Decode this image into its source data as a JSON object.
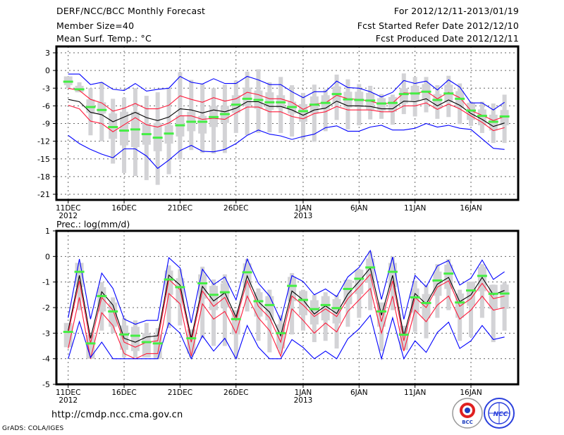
{
  "header": {
    "title": "DERF/NCC/BCC Monthly Forecast",
    "member_size": "Member Size=40",
    "variable": "Mean Surf. Temp.: °C",
    "period": "For 2012/12/11-2013/01/19",
    "start_date": "Fcst Started Refer Date 2012/12/10",
    "produced_date": "Fcst Produced Date 2012/12/11"
  },
  "footer": {
    "url": "http://cmdp.ncc.cma.gov.cn",
    "credit": "GrADS: COLA/IGES",
    "logo_bcc": "BCC",
    "logo_ncc": "NCC"
  },
  "colors": {
    "gray": "#d3d3d6",
    "green": "#44ee44",
    "black": "#000000",
    "red": "#ff1a3a",
    "blue": "#0000ff"
  },
  "chart_data": [
    {
      "type": "line",
      "title": "Mean Surf. Temp.: °C",
      "ylabel": "",
      "ylim": [
        -21,
        3
      ],
      "yticks": [
        "3",
        "0",
        "-3",
        "-6",
        "-9",
        "-12",
        "-15",
        "-18",
        "-21"
      ],
      "ytick_values": [
        3,
        0,
        -3,
        -6,
        -9,
        -12,
        -15,
        -18,
        -21
      ],
      "xticks": [
        {
          "day": 0,
          "label": "11DEC",
          "year": "2012"
        },
        {
          "day": 5,
          "label": "16DEC"
        },
        {
          "day": 10,
          "label": "21DEC"
        },
        {
          "day": 15,
          "label": "26DEC"
        },
        {
          "day": 21,
          "label": "1JAN",
          "year": "2013"
        },
        {
          "day": 26,
          "label": "6JAN"
        },
        {
          "day": 31,
          "label": "11JAN"
        },
        {
          "day": 36,
          "label": "16JAN"
        }
      ],
      "days": 40,
      "grid": true,
      "whisker_hi": [
        -1,
        -2,
        -3,
        -2,
        -4.8,
        -4.6,
        -3,
        -4.3,
        -3.7,
        -3,
        -0.3,
        -1.6,
        -2.3,
        -3,
        -2.4,
        -1.7,
        -0.2,
        0.2,
        -2,
        -1.1,
        -2.5,
        -3.8,
        -2.4,
        -3.2,
        -0.7,
        -1.5,
        -2.3,
        -2.6,
        -4,
        -4.1,
        -0.5,
        -1.1,
        -1.1,
        -2.5,
        -0.9,
        -2.2,
        -5.3,
        -5.3,
        -5.6,
        -4.1
      ],
      "whisker_lo": [
        -3,
        -3.7,
        -11,
        -12,
        -15.8,
        -17.4,
        -17.9,
        -18.6,
        -19.4,
        -17.6,
        -15.1,
        -13.5,
        -14,
        -14.1,
        -14,
        -10.6,
        -11,
        -10.6,
        -10.5,
        -10.6,
        -11.2,
        -11.7,
        -12.1,
        -10.3,
        -8.4,
        -10,
        -9.3,
        -8.3,
        -8.2,
        -9.2,
        -7.4,
        -7.8,
        -7.1,
        -8.2,
        -7.9,
        -9.1,
        -9.4,
        -10.6,
        -12.3,
        -12.3
      ],
      "box_hi": [
        -1.0,
        -2.6,
        -4.9,
        -5.4,
        -7.3,
        -7.0,
        -7.0,
        -9.0,
        -8.9,
        -9.3,
        -7.6,
        -7.0,
        -7.7,
        -6.0,
        -6.0,
        -4.2,
        -2.9,
        -3.4,
        -3.7,
        -4.2,
        -5.3,
        -5.7,
        -4.4,
        -4.2,
        -2.7,
        -3.6,
        -3.6,
        -3.8,
        -4.7,
        -4.5,
        -3.0,
        -2.6,
        -2.3,
        -4.0,
        -2.4,
        -3.5,
        -5.5,
        -6.6,
        -7.5,
        -6.7
      ],
      "box_lo": [
        -2.5,
        -3.7,
        -7.2,
        -7.3,
        -11.6,
        -12.7,
        -13.0,
        -12.6,
        -13.7,
        -12.4,
        -11.2,
        -10.3,
        -10.7,
        -9.6,
        -8.9,
        -7.2,
        -6.0,
        -6.5,
        -6.7,
        -6.4,
        -7.3,
        -8.7,
        -7.3,
        -6.6,
        -5.5,
        -6.3,
        -6.2,
        -6.7,
        -6.8,
        -7.0,
        -5.6,
        -5.2,
        -5.0,
        -6.5,
        -5.4,
        -6.3,
        -8.4,
        -9.3,
        -10.2,
        -9.3
      ],
      "green": [
        -1.9,
        -3.2,
        -6.2,
        -6.7,
        -9.6,
        -10.2,
        -10.0,
        -10.8,
        -11.4,
        -10.7,
        -9.3,
        -8.7,
        -8.7,
        -7.9,
        -7.4,
        -5.8,
        -4.8,
        -5.0,
        -5.4,
        -5.4,
        -6.2,
        -6.9,
        -5.8,
        -5.5,
        -4.0,
        -4.9,
        -5.0,
        -5.1,
        -5.6,
        -5.5,
        -4.0,
        -3.9,
        -3.6,
        -5.0,
        -3.9,
        -4.8,
        -6.8,
        -7.7,
        -8.7,
        -7.8
      ],
      "series": [
        {
          "name": "blue_upper",
          "color": "#0000ff",
          "values": [
            -0.6,
            -0.6,
            -2.4,
            -2.0,
            -3.2,
            -3.4,
            -2.2,
            -3.5,
            -3.2,
            -3.0,
            -1.0,
            -2.0,
            -2.3,
            -1.4,
            -2.2,
            -2.2,
            -1.0,
            -1.6,
            -2.4,
            -2.4,
            -3.6,
            -4.6,
            -3.6,
            -3.6,
            -1.8,
            -2.9,
            -3.0,
            -3.6,
            -4.5,
            -3.7,
            -1.7,
            -2.2,
            -1.8,
            -3.3,
            -1.6,
            -2.8,
            -5.5,
            -5.5,
            -6.7,
            -5.4
          ]
        },
        {
          "name": "red_upper",
          "color": "#ff1a3a",
          "values": [
            -3.0,
            -3.4,
            -4.9,
            -5.5,
            -6.9,
            -6.4,
            -5.6,
            -6.5,
            -6.5,
            -5.9,
            -4.3,
            -4.9,
            -5.4,
            -4.6,
            -5.2,
            -4.8,
            -3.7,
            -4.1,
            -4.8,
            -4.8,
            -5.4,
            -6.6,
            -5.7,
            -5.5,
            -4.2,
            -4.8,
            -4.9,
            -5.2,
            -5.7,
            -5.5,
            -3.8,
            -3.9,
            -3.5,
            -4.8,
            -3.7,
            -4.6,
            -6.8,
            -7.6,
            -8.5,
            -7.8
          ]
        },
        {
          "name": "mean",
          "color": "#000000",
          "values": [
            -4.9,
            -5.3,
            -7.1,
            -7.5,
            -8.7,
            -7.9,
            -7.1,
            -8.0,
            -8.5,
            -7.9,
            -6.5,
            -6.7,
            -7.2,
            -6.7,
            -7.0,
            -6.4,
            -5.3,
            -5.3,
            -6.1,
            -6.1,
            -6.7,
            -7.6,
            -6.7,
            -6.4,
            -5.2,
            -6.0,
            -6.0,
            -6.1,
            -6.5,
            -6.5,
            -5.2,
            -5.3,
            -4.8,
            -6.0,
            -5.0,
            -5.9,
            -7.3,
            -8.3,
            -9.5,
            -8.9
          ]
        },
        {
          "name": "red_lower",
          "color": "#ff1a3a",
          "values": [
            -5.9,
            -6.5,
            -8.6,
            -9.0,
            -10.4,
            -9.2,
            -8.0,
            -9.2,
            -9.6,
            -8.9,
            -7.7,
            -7.7,
            -8.3,
            -8.1,
            -8.3,
            -7.2,
            -6.2,
            -6.2,
            -7.0,
            -7.0,
            -7.8,
            -8.2,
            -7.3,
            -7.0,
            -6.1,
            -6.7,
            -6.7,
            -6.7,
            -7.0,
            -7.0,
            -6.0,
            -6.0,
            -5.5,
            -6.6,
            -5.7,
            -6.5,
            -7.7,
            -8.8,
            -10.2,
            -9.7
          ]
        },
        {
          "name": "blue_lower",
          "color": "#0000ff",
          "values": [
            -11.0,
            -12.4,
            -13.4,
            -14.2,
            -14.8,
            -13.3,
            -13.3,
            -14.5,
            -16.6,
            -15.2,
            -13.6,
            -12.7,
            -13.7,
            -13.8,
            -13.4,
            -12.4,
            -11.0,
            -10.1,
            -10.8,
            -11.1,
            -11.7,
            -11.2,
            -10.8,
            -9.7,
            -9.4,
            -10.3,
            -10.3,
            -9.6,
            -9.3,
            -10.1,
            -10.1,
            -9.8,
            -9.0,
            -9.6,
            -9.3,
            -9.8,
            -10.0,
            -11.6,
            -13.2,
            -13.4
          ]
        }
      ]
    },
    {
      "type": "line",
      "title": "Prec.: log(mm/d)",
      "ylim": [
        -5,
        1
      ],
      "yticks": [
        "1",
        "0",
        "-1",
        "-2",
        "-3",
        "-4",
        "-5"
      ],
      "ytick_values": [
        1,
        0,
        -1,
        -2,
        -3,
        -4,
        -5
      ],
      "xticks": [
        {
          "day": 0,
          "label": "11DEC",
          "year": "2012"
        },
        {
          "day": 5,
          "label": "16DEC"
        },
        {
          "day": 10,
          "label": "21DEC"
        },
        {
          "day": 15,
          "label": "26DEC"
        },
        {
          "day": 21,
          "label": "1JAN",
          "year": "2013"
        },
        {
          "day": 26,
          "label": "6JAN"
        },
        {
          "day": 31,
          "label": "11JAN"
        },
        {
          "day": 36,
          "label": "16JAN"
        }
      ],
      "days": 40,
      "grid": true,
      "whisker_hi": [
        -2.75,
        -0.25,
        -3.1,
        -1.0,
        -1.6,
        -2.4,
        -2.5,
        -2.6,
        -2.8,
        -0.35,
        -0.5,
        -3.0,
        -0.4,
        -0.9,
        -0.7,
        -2.3,
        -0.1,
        -1.25,
        -1.3,
        -2.3,
        -0.65,
        -1.3,
        -1.5,
        -1.4,
        -1.5,
        -0.9,
        -0.5,
        0.2,
        -1.9,
        0.0,
        -2.8,
        -0.95,
        -1.1,
        -0.3,
        -0.1,
        -1.3,
        -1.05,
        -0.3,
        -1.1,
        -1.0
      ],
      "whisker_lo": [
        -3.3,
        -2.1,
        -4.0,
        -2.9,
        -3.0,
        -3.95,
        -3.95,
        -3.95,
        -3.95,
        -2.8,
        -2.7,
        -3.95,
        -3.2,
        -3.5,
        -3.5,
        -4.0,
        -2.15,
        -3.3,
        -3.75,
        -3.8,
        -3.05,
        -2.9,
        -3.35,
        -3.3,
        -3.6,
        -2.75,
        -2.4,
        -2.1,
        -3.7,
        -2.1,
        -3.45,
        -2.95,
        -3.2,
        -2.4,
        -2.1,
        -3.3,
        -3.15,
        -2.4,
        -3.35,
        -2.9
      ],
      "box_hi": [
        -2.6,
        -0.25,
        -3.05,
        -1.2,
        -1.8,
        -2.7,
        -2.75,
        -3.0,
        -3.05,
        -0.55,
        -0.85,
        -2.85,
        -0.7,
        -1.15,
        -1.05,
        -2.1,
        -0.27,
        -1.4,
        -1.55,
        -2.65,
        -0.8,
        -1.35,
        -1.71,
        -1.55,
        -1.67,
        -0.92,
        -0.52,
        -0.08,
        -1.8,
        -0.25,
        -2.71,
        -1.25,
        -1.47,
        -0.59,
        -0.32,
        -1.45,
        -0.98,
        -0.41,
        -1.11,
        -1.1
      ],
      "box_lo": [
        -3.55,
        -1.2,
        -4.0,
        -2.15,
        -2.75,
        -3.65,
        -3.7,
        -3.95,
        -4.0,
        -1.5,
        -1.8,
        -3.8,
        -1.65,
        -2.1,
        -2.0,
        -3.05,
        -1.22,
        -2.35,
        -2.5,
        -3.6,
        -1.75,
        -2.3,
        -2.66,
        -2.5,
        -2.62,
        -1.87,
        -1.47,
        -1.03,
        -2.75,
        -1.2,
        -3.66,
        -2.2,
        -2.42,
        -1.54,
        -1.27,
        -2.4,
        -1.93,
        -1.36,
        -2.06,
        -2.05
      ],
      "green": [
        -2.95,
        -0.6,
        -3.4,
        -1.55,
        -2.15,
        -3.05,
        -3.1,
        -3.35,
        -3.4,
        -0.9,
        -1.2,
        -3.2,
        -1.05,
        -1.5,
        -1.4,
        -2.45,
        -0.62,
        -1.75,
        -1.9,
        -3.0,
        -1.15,
        -1.7,
        -2.06,
        -1.9,
        -2.02,
        -1.27,
        -0.87,
        -0.43,
        -2.15,
        -0.6,
        -3.06,
        -1.6,
        -1.82,
        -0.94,
        -0.67,
        -1.8,
        -1.33,
        -0.76,
        -1.46,
        -1.45
      ],
      "series": [
        {
          "name": "blue_upper",
          "color": "#0000ff",
          "values": [
            -2.4,
            -0.1,
            -2.45,
            -0.65,
            -1.25,
            -2.45,
            -2.65,
            -2.5,
            -2.5,
            -0.05,
            -0.45,
            -2.6,
            -0.5,
            -1.1,
            -0.8,
            -1.7,
            -0.1,
            -1.05,
            -1.55,
            -2.5,
            -0.75,
            -0.98,
            -1.5,
            -1.27,
            -1.57,
            -0.8,
            -0.43,
            0.23,
            -1.68,
            -0.02,
            -2.46,
            -0.74,
            -1.19,
            -0.37,
            -0.16,
            -1.12,
            -0.85,
            -0.14,
            -0.9,
            -0.6
          ]
        },
        {
          "name": "mean",
          "color": "#000000",
          "values": [
            -2.9,
            -0.74,
            -3.2,
            -1.38,
            -1.9,
            -3.2,
            -3.35,
            -3.15,
            -3.1,
            -0.73,
            -1.12,
            -3.2,
            -1.17,
            -1.74,
            -1.42,
            -2.37,
            -0.76,
            -1.77,
            -2.18,
            -3.1,
            -1.35,
            -1.7,
            -2.25,
            -1.93,
            -2.23,
            -1.47,
            -0.98,
            -0.45,
            -2.3,
            -0.74,
            -3.1,
            -1.45,
            -1.86,
            -1.08,
            -0.82,
            -1.77,
            -1.5,
            -0.82,
            -1.5,
            -1.33
          ]
        },
        {
          "name": "red_upper",
          "color": "#ff1a3a",
          "values": [
            -3.0,
            -0.95,
            -3.4,
            -1.6,
            -2.1,
            -3.35,
            -3.55,
            -3.35,
            -3.3,
            -0.9,
            -1.3,
            -3.35,
            -1.35,
            -1.95,
            -1.6,
            -2.5,
            -0.95,
            -1.95,
            -2.4,
            -3.35,
            -1.55,
            -1.9,
            -2.35,
            -2.05,
            -2.35,
            -1.65,
            -1.2,
            -0.7,
            -2.55,
            -0.95,
            -3.3,
            -1.6,
            -2.0,
            -1.2,
            -0.95,
            -1.95,
            -1.65,
            -1.05,
            -1.65,
            -1.55
          ]
        },
        {
          "name": "red_lower",
          "color": "#ff1a3a",
          "values": [
            -3.6,
            -1.6,
            -4.0,
            -2.2,
            -2.7,
            -3.8,
            -4.0,
            -3.8,
            -3.8,
            -1.45,
            -1.85,
            -3.9,
            -1.85,
            -2.45,
            -2.15,
            -3.0,
            -1.55,
            -2.4,
            -2.9,
            -3.9,
            -2.05,
            -2.5,
            -3.0,
            -2.6,
            -2.95,
            -2.15,
            -1.7,
            -1.25,
            -3.0,
            -1.55,
            -3.7,
            -2.1,
            -2.55,
            -1.9,
            -1.55,
            -2.45,
            -2.1,
            -1.55,
            -2.1,
            -2.0
          ]
        },
        {
          "name": "blue_lower",
          "color": "#0000ff",
          "values": [
            -4.0,
            -2.55,
            -3.95,
            -3.35,
            -4.0,
            -4.0,
            -4.0,
            -4.0,
            -4.0,
            -2.6,
            -3.0,
            -4.0,
            -3.1,
            -3.7,
            -3.2,
            -4.0,
            -2.7,
            -3.55,
            -4.0,
            -4.0,
            -3.25,
            -3.56,
            -4.0,
            -3.7,
            -4.0,
            -3.22,
            -2.83,
            -2.3,
            -4.0,
            -2.4,
            -4.0,
            -3.3,
            -3.75,
            -2.97,
            -2.57,
            -3.6,
            -3.3,
            -2.7,
            -3.25,
            -3.15
          ]
        }
      ]
    }
  ]
}
